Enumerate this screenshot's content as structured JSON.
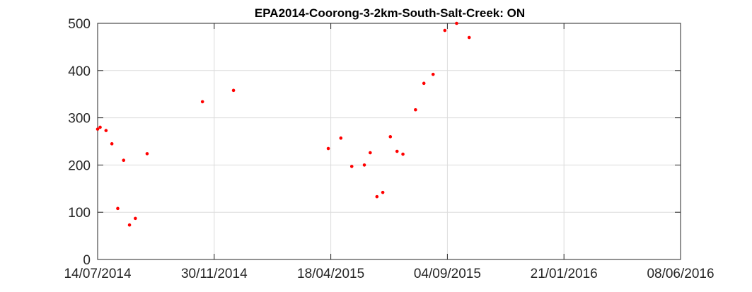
{
  "chart_data": {
    "type": "scatter",
    "title": "EPA2014-Coorong-3-2km-South-Salt-Creek: ON",
    "xlabel": "",
    "ylabel": "",
    "x_ticks": [
      "14/07/2014",
      "30/11/2014",
      "18/04/2015",
      "04/09/2015",
      "21/01/2016",
      "08/06/2016"
    ],
    "y_ticks": [
      "0",
      "100",
      "200",
      "300",
      "400",
      "500"
    ],
    "xlim": [
      "14/07/2014",
      "08/06/2016"
    ],
    "ylim": [
      0,
      500
    ],
    "grid": true,
    "marker_color": "#ff0000",
    "series": [
      {
        "x": [
          "14/07/2014",
          "17/07/2014",
          "24/07/2014",
          "31/07/2014",
          "07/08/2014",
          "14/08/2014",
          "21/08/2014",
          "28/08/2014",
          "11/09/2014",
          "16/11/2014",
          "23/12/2014",
          "15/04/2015",
          "30/04/2015",
          "13/05/2015",
          "28/05/2015",
          "04/06/2015",
          "12/06/2015",
          "19/06/2015",
          "28/06/2015",
          "06/07/2015",
          "13/07/2015",
          "28/07/2015",
          "07/08/2015",
          "18/08/2015",
          "01/09/2015",
          "15/09/2015",
          "30/09/2015"
        ],
        "y": [
          276,
          280,
          273,
          245,
          108,
          210,
          73,
          87,
          224,
          334,
          358,
          235,
          257,
          197,
          200,
          226,
          133,
          142,
          260,
          229,
          223,
          317,
          373,
          392,
          485,
          500,
          470
        ]
      }
    ]
  }
}
